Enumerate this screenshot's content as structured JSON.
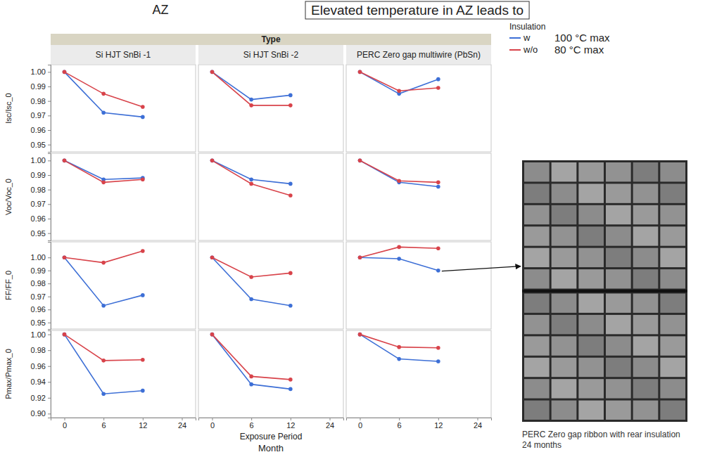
{
  "chart_data": {
    "type": "line",
    "title": "AZ",
    "annotation": "Elevated temperature in AZ leads to",
    "column_header": "Type",
    "columns": [
      "Si HJT SnBi -1",
      "Si HJT SnBi -2",
      "PERC Zero gap multiwire (PbSn)"
    ],
    "legend_title": "Insulation",
    "legend": "top-right",
    "series": [
      {
        "name": "w",
        "color": "#3d6fd6",
        "label": "100 °C max",
        "marker": "circle"
      },
      {
        "name": "w/o",
        "color": "#d8434a",
        "label": "80 °C max",
        "marker": "circle"
      }
    ],
    "x_label": "Exposure Period",
    "x_sublabel": "Month",
    "categories": [
      "0",
      "6",
      "12",
      "24"
    ],
    "image_caption": "PERC Zero gap ribbon with rear insulation 24 months",
    "rows": [
      {
        "label": "Isc/Isc_0",
        "ylim": [
          0.945,
          1.005
        ],
        "yticks": [
          {
            "value": 1,
            "label": "1.00"
          },
          0.99,
          0.98,
          0.97,
          0.96,
          0.95
        ],
        "values": [
          [
            [
              1.0,
              0.972,
              0.969,
              null
            ],
            [
              1.0,
              0.985,
              0.976,
              null
            ]
          ],
          [
            [
              1.0,
              0.981,
              0.984,
              null
            ],
            [
              1.0,
              0.977,
              0.977,
              null
            ]
          ],
          [
            [
              1.0,
              0.985,
              0.995,
              null
            ],
            [
              1.0,
              0.987,
              0.989,
              null
            ]
          ]
        ]
      },
      {
        "label": "Voc/Voc_0",
        "ylim": [
          0.945,
          1.005
        ],
        "yticks": [
          {
            "value": 1,
            "label": "1.00"
          },
          0.99,
          0.98,
          0.97,
          0.96,
          0.95
        ],
        "values": [
          [
            [
              1.0,
              0.987,
              0.988,
              null
            ],
            [
              1.0,
              0.985,
              0.987,
              null
            ]
          ],
          [
            [
              1.0,
              0.987,
              0.984,
              null
            ],
            [
              1.0,
              0.984,
              0.976,
              null
            ]
          ],
          [
            [
              1.0,
              0.985,
              0.982,
              null
            ],
            [
              1.0,
              0.986,
              0.985,
              null
            ]
          ]
        ]
      },
      {
        "label": "FF/FF_0",
        "ylim": [
          0.945,
          1.012
        ],
        "yticks": [
          {
            "value": 1,
            "label": "1.00"
          },
          0.99,
          0.98,
          0.97,
          0.96,
          0.95
        ],
        "values": [
          [
            [
              1.0,
              0.963,
              0.971,
              null
            ],
            [
              1.0,
              0.996,
              1.005,
              null
            ]
          ],
          [
            [
              1.0,
              0.968,
              0.963,
              null
            ],
            [
              1.0,
              0.985,
              0.988,
              null
            ]
          ],
          [
            [
              1.0,
              0.999,
              0.99,
              null
            ],
            [
              1.0,
              1.008,
              1.007,
              null
            ]
          ]
        ]
      },
      {
        "label": "Pmax/Pmax_0",
        "ylim": [
          0.895,
          1.005
        ],
        "yticks": [
          {
            "value": 1,
            "label": "1.00"
          },
          0.98,
          0.96,
          0.94,
          0.92,
          {
            "value": 0.9,
            "label": "0.90"
          }
        ],
        "values": [
          [
            [
              1.0,
              0.925,
              0.929,
              null
            ],
            [
              1.0,
              0.967,
              0.968,
              null
            ]
          ],
          [
            [
              1.0,
              0.937,
              0.931,
              null
            ],
            [
              1.0,
              0.947,
              0.943,
              null
            ]
          ],
          [
            [
              1.0,
              0.969,
              0.966,
              null
            ],
            [
              1.0,
              0.984,
              0.983,
              null
            ]
          ]
        ]
      }
    ]
  }
}
